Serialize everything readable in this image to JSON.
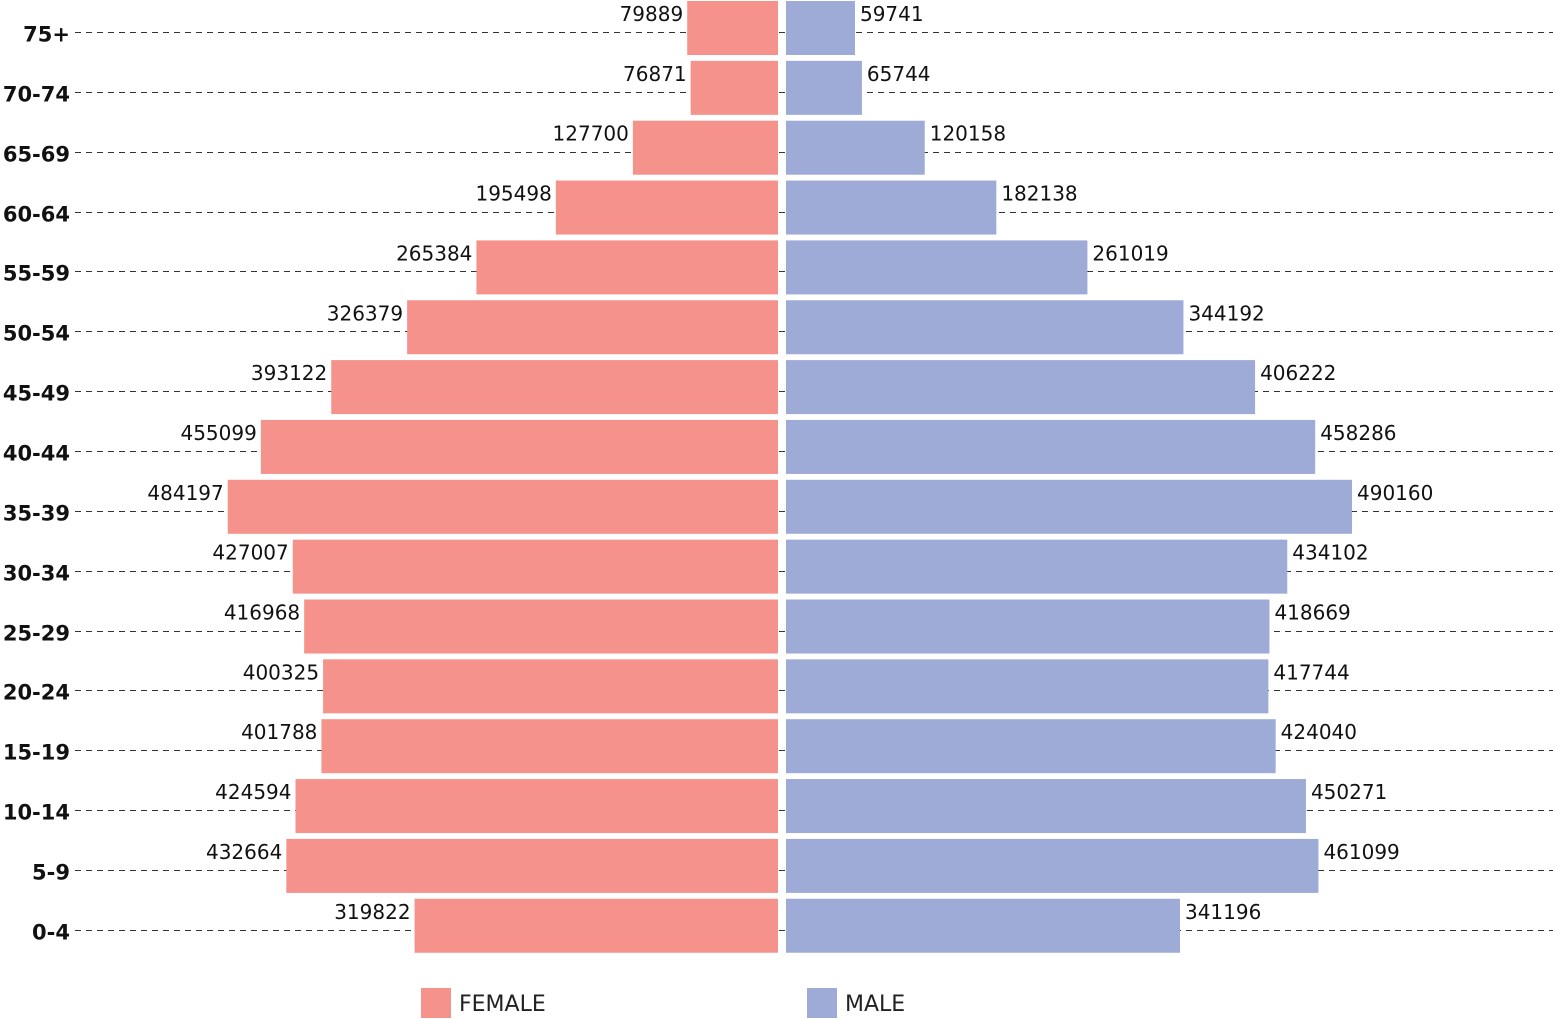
{
  "chart_data": {
    "type": "bar",
    "orientation": "horizontal-population-pyramid",
    "categories": [
      "75+",
      "70-74",
      "65-69",
      "60-64",
      "55-59",
      "50-54",
      "45-49",
      "40-44",
      "35-39",
      "30-34",
      "25-29",
      "20-24",
      "15-19",
      "10-14",
      "5-9",
      "0-4"
    ],
    "series": [
      {
        "name": "FEMALE",
        "color": "#f5928b",
        "values": [
          79889,
          76871,
          127700,
          195498,
          265384,
          326379,
          393122,
          455099,
          484197,
          427007,
          416968,
          400325,
          401788,
          424594,
          432664,
          319822
        ]
      },
      {
        "name": "MALE",
        "color": "#9fabd7",
        "values": [
          59741,
          65744,
          120158,
          182138,
          261019,
          344192,
          406222,
          458286,
          490160,
          434102,
          418669,
          417744,
          424040,
          450271,
          461099,
          341196
        ]
      }
    ],
    "xlim": [
      0,
      490160
    ],
    "grid": "horizontal dashed",
    "legend": "bottom-center"
  }
}
